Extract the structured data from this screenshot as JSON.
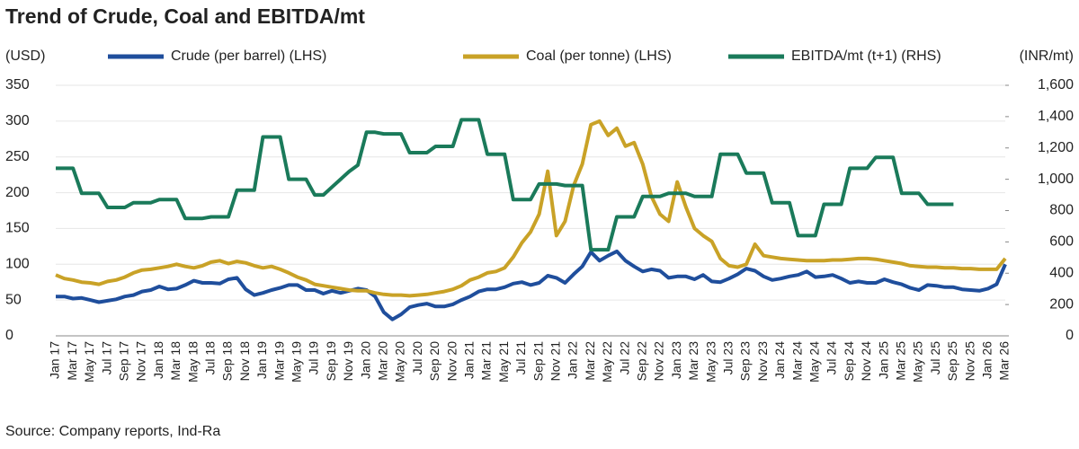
{
  "chart_data": {
    "type": "line",
    "title": "Trend of Crude, Coal and EBITDA/mt",
    "y_label": "(USD)",
    "y2_label": "(INR/mt)",
    "source": "Source: Company reports, Ind-Ra",
    "categories": [
      "Jan 17",
      null,
      "Mar 17",
      null,
      "May 17",
      null,
      "Jul 17",
      null,
      "Sep 17",
      null,
      "Nov 17",
      null,
      "Jan 18",
      null,
      "Mar 18",
      null,
      "May 18",
      null,
      "Jul 18",
      null,
      "Sep 18",
      null,
      "Nov 18",
      null,
      "Jan 19",
      null,
      "Mar 19",
      null,
      "May 19",
      null,
      "Jul 19",
      null,
      "Sep 19",
      null,
      "Nov 19",
      null,
      "Jan 20",
      null,
      "Mar 20",
      null,
      "May 20",
      null,
      "Jul 20",
      null,
      "Sep 20",
      null,
      "Nov 20",
      null,
      "Jan 21",
      null,
      "Mar 21",
      null,
      "May 21",
      null,
      "Jul 21",
      null,
      "Sep 21",
      null,
      "Nov 21",
      null,
      "Jan 22",
      null,
      "Mar 22",
      null,
      "May 22",
      null,
      "Jul 22",
      null,
      "Sep 22",
      null,
      "Nov 22",
      null,
      "Jan 23",
      null,
      "Mar 23",
      null,
      "May 23",
      null,
      "Jul 23",
      null,
      "Sep 23",
      null,
      "Nov 23",
      null,
      "Jan 24",
      null,
      "Mar 24",
      null,
      "May 24",
      null,
      "Jul 24",
      null,
      "Sep 24",
      null,
      "Nov 24",
      null,
      "Jan 25",
      null,
      "Mar 25",
      null,
      "May 25",
      null,
      "Jul 25",
      null,
      "Sep 25",
      null,
      "Nov 25",
      null,
      "Jan 26",
      null,
      "Mar 26"
    ],
    "series": [
      {
        "name": "Crude (per barrel) (LHS)",
        "color": "#1f4e9c",
        "values": [
          55,
          55,
          52,
          53,
          50,
          47,
          49,
          51,
          55,
          57,
          62,
          64,
          69,
          65,
          66,
          71,
          77,
          74,
          74,
          73,
          79,
          81,
          65,
          57,
          60,
          64,
          67,
          71,
          71,
          64,
          64,
          59,
          63,
          60,
          63,
          66,
          64,
          55,
          33,
          23,
          30,
          40,
          43,
          45,
          41,
          41,
          44,
          50,
          55,
          62,
          65,
          65,
          68,
          73,
          75,
          71,
          74,
          84,
          81,
          74,
          86,
          97,
          117,
          105,
          112,
          118,
          105,
          97,
          90,
          93,
          91,
          81,
          83,
          83,
          79,
          85,
          76,
          75,
          80,
          86,
          94,
          91,
          83,
          78,
          80,
          83,
          85,
          90,
          82,
          83,
          85,
          80,
          74,
          76,
          74,
          74,
          79,
          75,
          72,
          67,
          64,
          71,
          70,
          68,
          68,
          65,
          64,
          63,
          66,
          72,
          100
        ]
      },
      {
        "name": "Coal (per tonne) (LHS)",
        "color": "#c9a227",
        "values": [
          85,
          80,
          78,
          75,
          74,
          72,
          76,
          78,
          82,
          88,
          92,
          93,
          95,
          97,
          100,
          97,
          95,
          98,
          103,
          105,
          101,
          104,
          102,
          98,
          95,
          97,
          93,
          88,
          82,
          78,
          72,
          70,
          68,
          66,
          64,
          63,
          63,
          60,
          58,
          57,
          57,
          56,
          57,
          58,
          60,
          62,
          65,
          70,
          78,
          82,
          88,
          90,
          95,
          110,
          130,
          145,
          170,
          230,
          140,
          160,
          210,
          240,
          295,
          300,
          280,
          290,
          265,
          270,
          240,
          195,
          170,
          160,
          215,
          180,
          150,
          140,
          132,
          108,
          98,
          96,
          100,
          128,
          112,
          110,
          108,
          107,
          106,
          105,
          105,
          105,
          106,
          106,
          107,
          108,
          108,
          107,
          105,
          103,
          101,
          98,
          97,
          96,
          96,
          95,
          95,
          94,
          94,
          93,
          93,
          93,
          108
        ]
      },
      {
        "name": "EBITDA/mt (t+1) (RHS)",
        "color": "#1a7a5a",
        "axis": "y2",
        "values": [
          1070,
          1070,
          1070,
          910,
          910,
          910,
          820,
          820,
          820,
          850,
          850,
          850,
          870,
          870,
          870,
          750,
          750,
          750,
          760,
          760,
          760,
          930,
          930,
          930,
          1270,
          1270,
          1270,
          1000,
          1000,
          1000,
          900,
          900,
          950,
          1000,
          1050,
          1090,
          1300,
          1300,
          1290,
          1290,
          1290,
          1170,
          1170,
          1170,
          1210,
          1210,
          1210,
          1380,
          1380,
          1380,
          1160,
          1160,
          1160,
          870,
          870,
          870,
          970,
          970,
          970,
          960,
          960,
          960,
          550,
          550,
          550,
          760,
          760,
          760,
          890,
          890,
          890,
          910,
          910,
          910,
          890,
          890,
          890,
          1160,
          1160,
          1160,
          1040,
          1040,
          1040,
          850,
          850,
          850,
          640,
          640,
          640,
          840,
          840,
          840,
          1070,
          1070,
          1070,
          1140,
          1140,
          1140,
          910,
          910,
          910,
          840,
          840,
          840,
          840,
          null,
          null,
          null,
          null,
          null,
          null
        ]
      }
    ],
    "ylim": [
      0,
      350
    ],
    "yticks": [
      0,
      50,
      100,
      150,
      200,
      250,
      300,
      350
    ],
    "y2lim": [
      0,
      1600
    ],
    "y2ticks": [
      0,
      200,
      400,
      600,
      800,
      {
        "value": 1000,
        "label": "1,000"
      },
      {
        "value": 1200,
        "label": "1,200"
      },
      {
        "value": 1400,
        "label": "1,400"
      },
      {
        "value": 1600,
        "label": "1,600"
      }
    ],
    "grid": true
  }
}
